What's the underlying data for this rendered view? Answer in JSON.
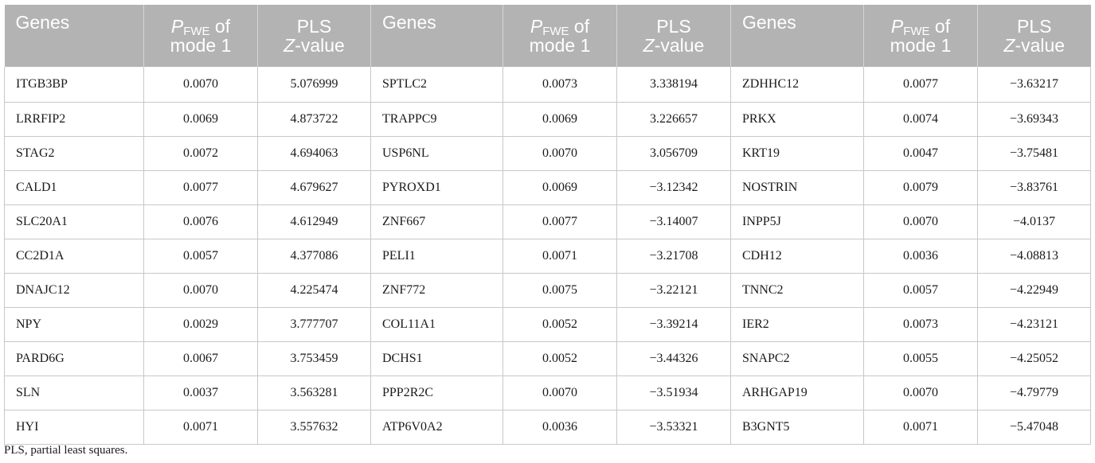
{
  "headers": {
    "genes": "Genes",
    "p_symbol": "P",
    "p_sub": "FWE",
    "p_rest": " of",
    "p_line2": "mode 1",
    "z_line1": "PLS",
    "z_italic": "Z",
    "z_rest": "-value"
  },
  "rows": [
    [
      [
        "ITGB3BP",
        "0.0070",
        "5.076999"
      ],
      [
        "SPTLC2",
        "0.0073",
        "3.338194"
      ],
      [
        "ZDHHC12",
        "0.0077",
        "−3.63217"
      ]
    ],
    [
      [
        "LRRFIP2",
        "0.0069",
        "4.873722"
      ],
      [
        "TRAPPC9",
        "0.0069",
        "3.226657"
      ],
      [
        "PRKX",
        "0.0074",
        "−3.69343"
      ]
    ],
    [
      [
        "STAG2",
        "0.0072",
        "4.694063"
      ],
      [
        "USP6NL",
        "0.0070",
        "3.056709"
      ],
      [
        "KRT19",
        "0.0047",
        "−3.75481"
      ]
    ],
    [
      [
        "CALD1",
        "0.0077",
        "4.679627"
      ],
      [
        "PYROXD1",
        "0.0069",
        "−3.12342"
      ],
      [
        "NOSTRIN",
        "0.0079",
        "−3.83761"
      ]
    ],
    [
      [
        "SLC20A1",
        "0.0076",
        "4.612949"
      ],
      [
        "ZNF667",
        "0.0077",
        "−3.14007"
      ],
      [
        "INPP5J",
        "0.0070",
        "−4.0137"
      ]
    ],
    [
      [
        "CC2D1A",
        "0.0057",
        "4.377086"
      ],
      [
        "PELI1",
        "0.0071",
        "−3.21708"
      ],
      [
        "CDH12",
        "0.0036",
        "−4.08813"
      ]
    ],
    [
      [
        "DNAJC12",
        "0.0070",
        "4.225474"
      ],
      [
        "ZNF772",
        "0.0075",
        "−3.22121"
      ],
      [
        "TNNC2",
        "0.0057",
        "−4.22949"
      ]
    ],
    [
      [
        "NPY",
        "0.0029",
        "3.777707"
      ],
      [
        "COL11A1",
        "0.0052",
        "−3.39214"
      ],
      [
        "IER2",
        "0.0073",
        "−4.23121"
      ]
    ],
    [
      [
        "PARD6G",
        "0.0067",
        "3.753459"
      ],
      [
        "DCHS1",
        "0.0052",
        "−3.44326"
      ],
      [
        "SNAPC2",
        "0.0055",
        "−4.25052"
      ]
    ],
    [
      [
        "SLN",
        "0.0037",
        "3.563281"
      ],
      [
        "PPP2R2C",
        "0.0070",
        "−3.51934"
      ],
      [
        "ARHGAP19",
        "0.0070",
        "−4.79779"
      ]
    ],
    [
      [
        "HYI",
        "0.0071",
        "3.557632"
      ],
      [
        "ATP6V0A2",
        "0.0036",
        "−3.53321"
      ],
      [
        "B3GNT5",
        "0.0071",
        "−5.47048"
      ]
    ]
  ],
  "footnote": "PLS, partial least squares."
}
